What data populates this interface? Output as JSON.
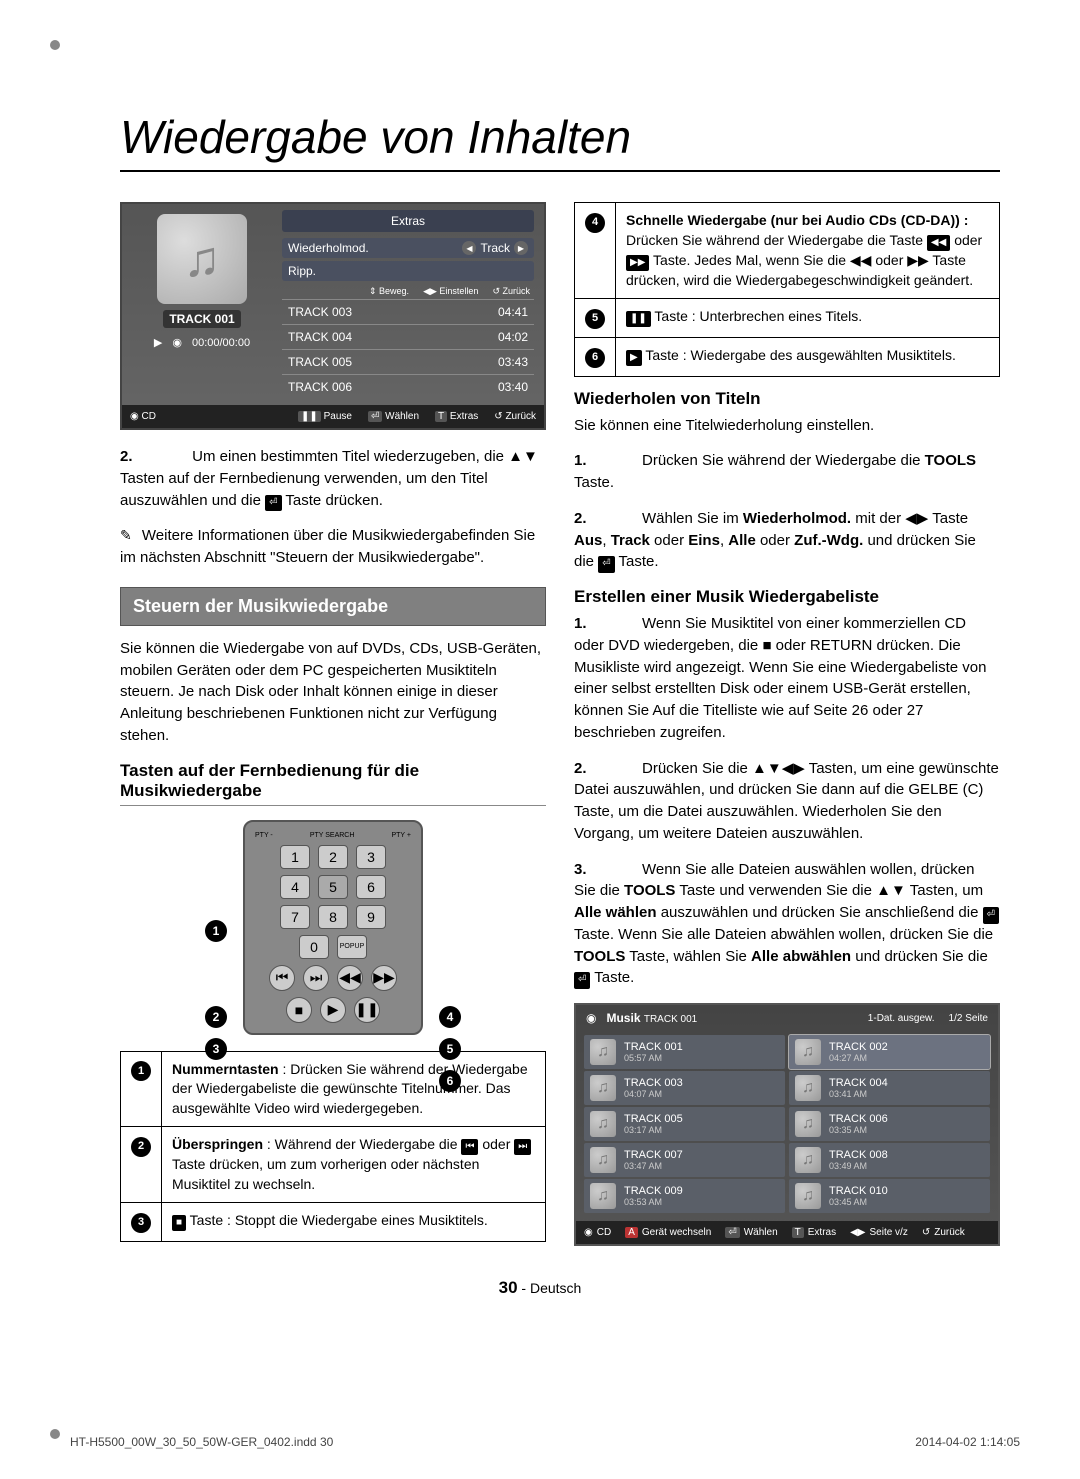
{
  "page_title": "Wiedergabe von Inhalten",
  "player": {
    "track_label": "TRACK 001",
    "time": "00:00/00:00",
    "source": "CD",
    "extras": "Extras",
    "mode": "Wiederholmod.",
    "mode_val": "Track",
    "ripp": "Ripp.",
    "hints": {
      "move": "Beweg.",
      "set": "Einstellen",
      "back": "Zurück"
    },
    "tracks": [
      {
        "name": "TRACK 003",
        "dur": "04:41"
      },
      {
        "name": "TRACK 004",
        "dur": "04:02"
      },
      {
        "name": "TRACK 005",
        "dur": "03:43"
      },
      {
        "name": "TRACK 006",
        "dur": "03:40"
      }
    ],
    "footer": {
      "pause": "Pause",
      "select": "Wählen",
      "extras": "Extras",
      "back": "Zurück"
    }
  },
  "para2_num": "2.",
  "para2": "Um einen bestimmten Titel wiederzugeben, die ▲▼ Tasten auf der Fernbedienung verwenden, um den Titel auszuwählen und die",
  "para2_tail": "Taste drücken.",
  "note_line1": "Weitere Informationen über die Musikwiedergabefinden Sie im nächsten Abschnitt \"Steuern der Musikwiedergabe\".",
  "section_bar": "Steuern der Musikwiedergabe",
  "section_intro": "Sie können die Wiedergabe von auf DVDs, CDs, USB-Geräten, mobilen Geräten oder dem PC gespeicherten Musiktiteln steuern. Je nach Disk oder Inhalt können einige in dieser Anleitung beschriebenen Funktionen nicht zur Verfügung stehen.",
  "subhead_remote": "Tasten auf der Fernbedienung für die Musikwiedergabe",
  "remote_labels": {
    "popup": "POPUP"
  },
  "desc_table_left": [
    {
      "n": "1",
      "bold": "Nummerntasten",
      "text": " : Drücken Sie während der Wiedergabe der Wiedergabeliste  die gewünschte Titelnummer. Das ausgewählte Video wird wiedergegeben."
    },
    {
      "n": "2",
      "bold": "Überspringen",
      "text": " : Während der Wiedergabe die ",
      "icon1": "⏮",
      "mid": " oder ",
      "icon2": "⏭",
      "tail": " Taste drücken, um zum vorherigen oder nächsten Musiktitel zu wechseln."
    },
    {
      "n": "3",
      "bold": "",
      "text": "",
      "icon1": "■",
      "tail": " Taste : Stoppt die Wiedergabe eines Musiktitels."
    }
  ],
  "desc_table_right": [
    {
      "n": "4",
      "bold": "Schnelle Wiedergabe (nur bei Audio CDs (CD-DA)) :",
      "text": " Drücken Sie während der Wiedergabe die Taste ",
      "icon1": "◀◀",
      "mid": " oder ",
      "icon2": "▶▶",
      "tail": " Taste. Jedes Mal, wenn Sie die ◀◀ oder ▶▶ Taste drücken, wird die Wiedergabegeschwindigkeit geändert."
    },
    {
      "n": "5",
      "bold": "",
      "text": "",
      "icon1": "❚❚",
      "tail": " Taste : Unterbrechen eines Titels."
    },
    {
      "n": "6",
      "bold": "",
      "text": "",
      "icon1": "▶",
      "tail": " Taste : Wiedergabe des ausgewählten Musiktitels."
    }
  ],
  "repeat_head": "Wiederholen von Titeln",
  "repeat_intro": "Sie können eine Titelwiederholung einstellen.",
  "repeat_steps": [
    {
      "n": "1.",
      "text": "Drücken Sie während der Wiedergabe die ",
      "bold": "TOOLS",
      "tail": " Taste."
    },
    {
      "n": "2.",
      "pre": "Wählen Sie im ",
      "b1": "Wiederholmod.",
      "mid1": " mit der ◀▶ Taste ",
      "b2": "Aus",
      "c": ", ",
      "b3": "Track",
      "mid2": " oder ",
      "b4": "Eins",
      "c2": ", ",
      "b5": "Alle",
      "mid3": " oder ",
      "b6": "Zuf.-Wdg.",
      "tail": " und drücken Sie die ",
      "tail2": " Taste."
    }
  ],
  "playlist_head": "Erstellen einer Musik Wiedergabeliste",
  "playlist_steps": [
    {
      "n": "1.",
      "text": "Wenn Sie Musiktitel von einer kommerziellen CD oder DVD wiedergeben, die ■ oder RETURN drücken. Die Musikliste wird angezeigt. Wenn Sie eine Wiedergabeliste von einer selbst erstellten Disk oder einem USB-Gerät erstellen, können Sie Auf die Titelliste wie auf Seite 26 oder 27 beschrieben zugreifen."
    },
    {
      "n": "2.",
      "text": "Drücken Sie die ▲▼◀▶ Tasten, um eine gewünschte Datei auszuwählen, und drücken Sie dann auf die GELBE (C) Taste, um die Datei auszuwählen. Wiederholen Sie den Vorgang, um weitere Dateien auszuwählen."
    },
    {
      "n": "3.",
      "pre": "Wenn Sie alle Dateien auswählen wollen, drücken Sie die ",
      "b1": "TOOLS",
      "mid": " Taste und verwenden Sie die ▲▼ Tasten, um ",
      "b2": "Alle wählen",
      "mid2": " auszuwählen und drücken Sie anschließend die ",
      "mid3": " Taste. Wenn Sie alle Dateien abwählen wollen, drücken Sie die ",
      "b3": "TOOLS",
      "mid4": " Taste, wählen Sie ",
      "b4": "Alle abwählen",
      "tail": " und drücken Sie die ",
      "tail2": " Taste."
    }
  ],
  "music_panel": {
    "title": "Musik",
    "subtitle": "TRACK 001",
    "status": "1-Dat. ausgew.",
    "page": "1/2 Seite",
    "items": [
      {
        "t": "TRACK 001",
        "d": "05:57 AM"
      },
      {
        "t": "TRACK 002",
        "d": "04:27 AM"
      },
      {
        "t": "TRACK 003",
        "d": "04:07 AM"
      },
      {
        "t": "TRACK 004",
        "d": "03:41 AM"
      },
      {
        "t": "TRACK 005",
        "d": "03:17 AM"
      },
      {
        "t": "TRACK 006",
        "d": "03:35 AM"
      },
      {
        "t": "TRACK 007",
        "d": "03:47 AM"
      },
      {
        "t": "TRACK 008",
        "d": "03:49 AM"
      },
      {
        "t": "TRACK 009",
        "d": "03:53 AM"
      },
      {
        "t": "TRACK 010",
        "d": "03:45 AM"
      }
    ],
    "footer": {
      "src": "CD",
      "a": "Gerät wechseln",
      "sel": "Wählen",
      "ext": "Extras",
      "pg": "Seite v/z",
      "back": "Zurück"
    }
  },
  "page_number_n": "30",
  "page_number_lang": " - Deutsch",
  "footer": {
    "file": "HT-H5500_00W_30_50_50W-GER_0402.indd   30",
    "dt": "2014-04-02    1:14:05"
  }
}
